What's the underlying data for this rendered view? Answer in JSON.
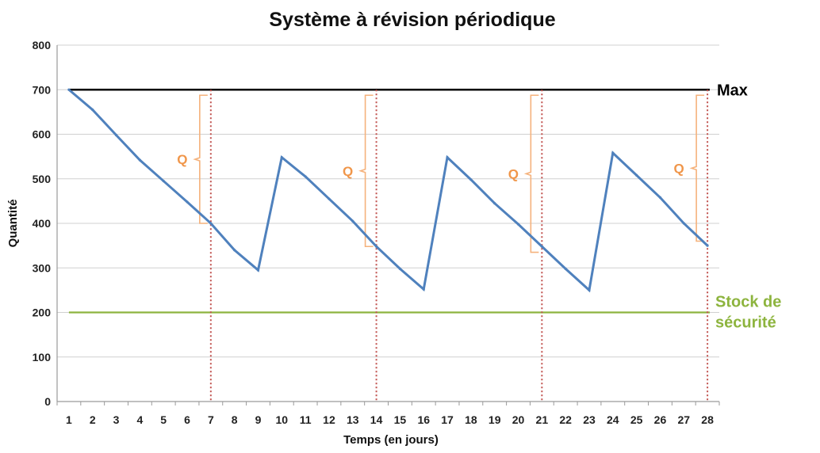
{
  "chart_data": {
    "type": "line",
    "title": "Système à révision périodique",
    "xlabel": "Temps (en jours)",
    "ylabel": "Quantité",
    "categories": [
      "1",
      "2",
      "3",
      "4",
      "5",
      "6",
      "7",
      "8",
      "9",
      "10",
      "11",
      "12",
      "13",
      "14",
      "15",
      "16",
      "17",
      "18",
      "19",
      "20",
      "21",
      "22",
      "23",
      "24",
      "25",
      "26",
      "27",
      "28"
    ],
    "ylim": [
      0,
      800
    ],
    "yticks": [
      "0",
      "100",
      "200",
      "300",
      "400",
      "500",
      "600",
      "700",
      "800"
    ],
    "grid": true,
    "series": [
      {
        "values": [
          700,
          655,
          598,
          542,
          495,
          448,
          400,
          340,
          295,
          548,
          505,
          455,
          405,
          348,
          298,
          252,
          548,
          498,
          445,
          398,
          348,
          298,
          250,
          558,
          508,
          458,
          400,
          350
        ],
        "color": "#4f81bd"
      }
    ],
    "reference_lines": [
      {
        "label": "Max",
        "value": 700,
        "color": "#000000"
      },
      {
        "label_lines": [
          "Stock de",
          "sécurité"
        ],
        "value": 200,
        "color": "#8db43e"
      }
    ],
    "review_days": [
      7,
      14,
      21,
      28
    ],
    "review_line_color": "#c0504d",
    "order_brackets": [
      {
        "label": "Q",
        "day": 7,
        "from": 400,
        "to": 700
      },
      {
        "label": "Q",
        "day": 14,
        "from": 348,
        "to": 700
      },
      {
        "label": "Q",
        "day": 21,
        "from": 335,
        "to": 700
      },
      {
        "label": "Q",
        "day": 28,
        "from": 360,
        "to": 700
      }
    ],
    "bracket_color": "#f5b27c",
    "q_label_color": "#f0964a"
  }
}
